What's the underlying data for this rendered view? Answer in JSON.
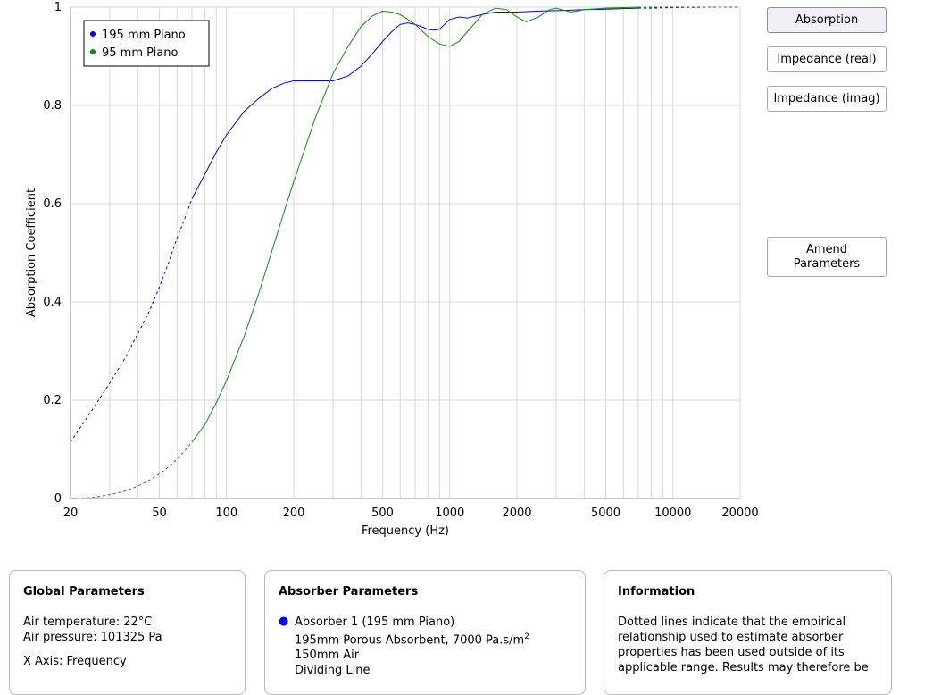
{
  "buttons": {
    "absorption": "Absorption",
    "impedance_real": "Impedance (real)",
    "impedance_imag": "Impedance (imag)",
    "amend_line1": "Amend",
    "amend_line2": "Parameters"
  },
  "panels": {
    "global": {
      "title": "Global Parameters",
      "air_temperature": "Air temperature: 22°C",
      "air_pressure": "Air pressure: 101325 Pa",
      "x_axis": "X Axis: Frequency"
    },
    "absorber": {
      "title": "Absorber Parameters",
      "item_name": "Absorber 1 (195 mm Piano)",
      "line1_prefix": "195mm Porous Absorbent, 7000 Pa.s/m",
      "line1_sup": "2",
      "line2": "150mm Air",
      "line3": "Dividing Line"
    },
    "information": {
      "title": "Information",
      "text": "Dotted lines indicate that the empirical relationship used to estimate absorber properties has been used outside of its applicable range. Results may therefore be"
    }
  },
  "colors": {
    "blue": "#0000ee",
    "green": "#128a12",
    "grid": "#d9d9d9"
  },
  "chart_data": {
    "type": "line",
    "xlabel": "Frequency (Hz)",
    "ylabel": "Absorption Coefficient",
    "xscale": "log",
    "xlim": [
      20,
      20000
    ],
    "ylim": [
      0,
      1
    ],
    "x_ticks": [
      20,
      50,
      100,
      200,
      500,
      1000,
      2000,
      5000,
      10000,
      20000
    ],
    "y_ticks": [
      0,
      0.2,
      0.4,
      0.6,
      0.8,
      1
    ],
    "y_tick_labels": [
      "0",
      "0.2",
      "0.4",
      "0.6",
      "0.8",
      "1"
    ],
    "grid": true,
    "legend_position": "top-left",
    "series": [
      {
        "name": "195 mm Piano",
        "color": "#0000ee",
        "x": [
          20,
          25,
          30,
          35,
          40,
          45,
          50,
          55,
          60,
          65,
          70,
          80,
          90,
          100,
          110,
          120,
          140,
          160,
          180,
          200,
          250,
          300,
          350,
          400,
          450,
          500,
          550,
          600,
          650,
          700,
          750,
          800,
          850,
          900,
          1000,
          1100,
          1200,
          1400,
          1600,
          1800,
          2000,
          2500,
          3000,
          4000,
          5000,
          6000,
          7000,
          8000,
          10000,
          15000,
          20000
        ],
        "values": [
          0.115,
          0.18,
          0.235,
          0.285,
          0.335,
          0.38,
          0.43,
          0.48,
          0.53,
          0.57,
          0.61,
          0.66,
          0.705,
          0.74,
          0.765,
          0.788,
          0.815,
          0.835,
          0.845,
          0.85,
          0.85,
          0.85,
          0.86,
          0.88,
          0.905,
          0.93,
          0.95,
          0.965,
          0.968,
          0.965,
          0.96,
          0.955,
          0.953,
          0.955,
          0.975,
          0.98,
          0.978,
          0.985,
          0.99,
          0.99,
          0.99,
          0.992,
          0.993,
          0.995,
          0.996,
          0.997,
          0.998,
          0.998,
          0.999,
          1.0,
          1.0
        ],
        "dotted_segments": [
          [
            20,
            70
          ],
          [
            7000,
            20000
          ]
        ]
      },
      {
        "name": "95 mm Piano",
        "color": "#128a12",
        "x": [
          20,
          25,
          30,
          35,
          40,
          45,
          50,
          55,
          60,
          65,
          70,
          80,
          90,
          100,
          120,
          140,
          160,
          180,
          200,
          250,
          300,
          350,
          400,
          450,
          500,
          550,
          600,
          650,
          700,
          750,
          800,
          900,
          1000,
          1100,
          1200,
          1400,
          1600,
          1800,
          2000,
          2200,
          2500,
          2800,
          3000,
          3500,
          4000,
          5000,
          6000,
          7000,
          8000,
          10000,
          15000,
          20000
        ],
        "values": [
          0.0,
          0.002,
          0.008,
          0.015,
          0.025,
          0.037,
          0.05,
          0.064,
          0.08,
          0.097,
          0.115,
          0.15,
          0.195,
          0.24,
          0.33,
          0.42,
          0.505,
          0.58,
          0.645,
          0.775,
          0.865,
          0.92,
          0.96,
          0.982,
          0.992,
          0.99,
          0.985,
          0.975,
          0.965,
          0.952,
          0.94,
          0.925,
          0.92,
          0.93,
          0.95,
          0.985,
          0.998,
          0.995,
          0.98,
          0.97,
          0.98,
          0.995,
          0.998,
          0.99,
          0.995,
          0.998,
          0.999,
          1.0,
          1.0,
          1.0,
          1.0,
          1.0
        ],
        "dotted_segments": [
          [
            20,
            70
          ],
          [
            7000,
            20000
          ]
        ]
      }
    ]
  }
}
